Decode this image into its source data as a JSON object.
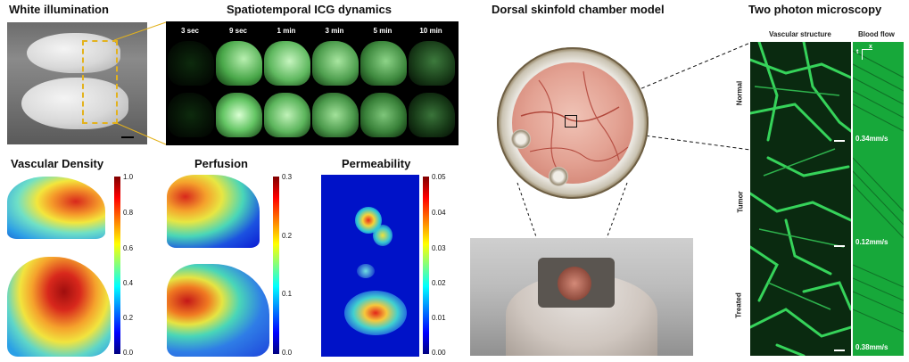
{
  "panels": {
    "white_illumination": {
      "title": "White illumination"
    },
    "icg": {
      "title": "Spatiotemporal ICG dynamics",
      "times": [
        "3 sec",
        "9 sec",
        "1 min",
        "3 min",
        "5 min",
        "10 min"
      ]
    },
    "vascular_density": {
      "title": "Vascular Density",
      "ticks": [
        "1.0",
        "0.8",
        "0.6",
        "0.4",
        "0.2",
        "0.0"
      ]
    },
    "perfusion": {
      "title": "Perfusion",
      "ticks": [
        "0.3",
        "0.2",
        "0.1",
        "0.0"
      ]
    },
    "permeability": {
      "title": "Permeability",
      "ticks": [
        "0.05",
        "0.04",
        "0.03",
        "0.02",
        "0.01",
        "0.00"
      ]
    },
    "dorsal": {
      "title": "Dorsal skinfold chamber model"
    },
    "two_photon": {
      "title": "Two photon microscopy",
      "col_structure": "Vascular structure",
      "col_flow": "Blood flow",
      "rows": [
        "Normal",
        "Tumor",
        "Treated"
      ],
      "flows": [
        "0.34mm/s",
        "0.12mm/s",
        "0.38mm/s"
      ],
      "axis_x": "x",
      "axis_t": "t"
    }
  },
  "colors": {
    "accent_box": "#e3b21d",
    "vessel": "#36d35a"
  }
}
